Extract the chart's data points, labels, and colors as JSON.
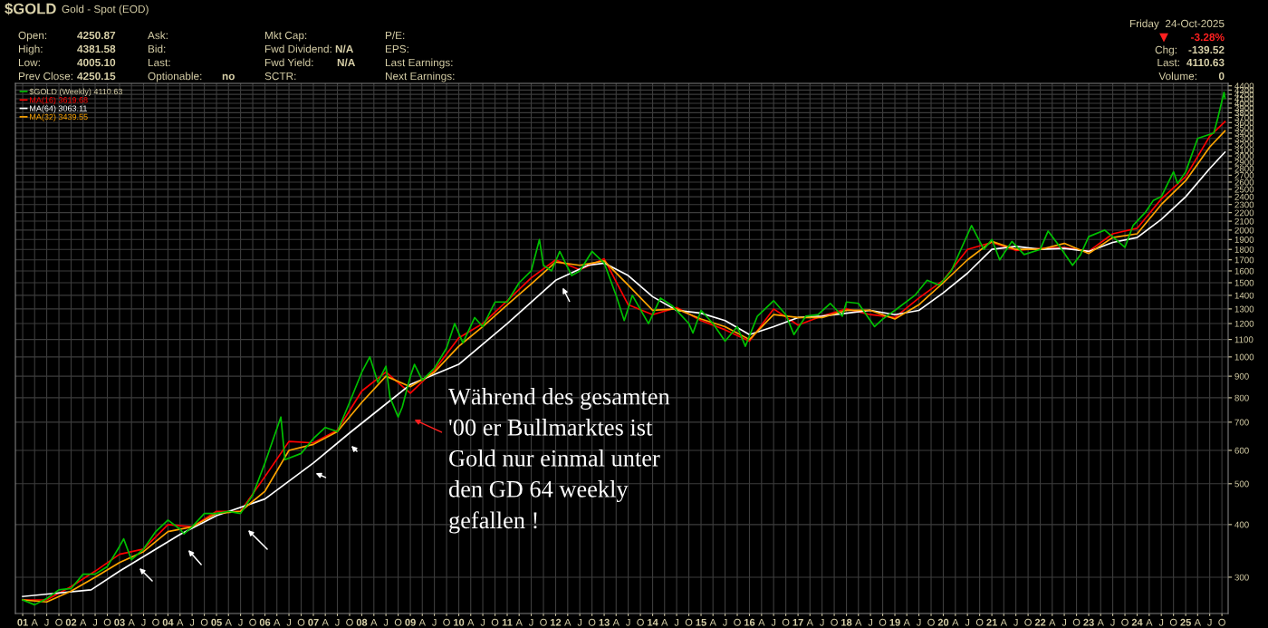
{
  "chart_data": {
    "type": "line",
    "title": "$GOLD",
    "subtitle": "Gold - Spot (EOD)",
    "log": true,
    "grid": true,
    "legend": "top left",
    "marker": "none",
    "line_style": "solid",
    "xlim": [
      "2000-11-07",
      "2025-11-17"
    ],
    "ylim": [
      246,
      4460
    ],
    "yticks": [
      300,
      400,
      500,
      600,
      700,
      800,
      900,
      1000,
      1100,
      1200,
      1300,
      1400,
      1500,
      1600,
      1700,
      1800,
      1900,
      2000,
      2100,
      2200,
      2300,
      2400,
      2500,
      2600,
      2700,
      2800,
      2900,
      3000,
      3100,
      3200,
      3300,
      3400,
      3500,
      3600,
      3700,
      3800,
      3900,
      4000,
      4100,
      4200,
      4300,
      4400
    ],
    "xticks": [
      {
        "value": "2001-01",
        "label": "01"
      },
      {
        "value": "2001-04",
        "label": "A"
      },
      {
        "value": "2001-07",
        "label": "J"
      },
      {
        "value": "2001-10",
        "label": "O"
      },
      {
        "value": "2002-01",
        "label": "02"
      },
      {
        "value": "2002-04",
        "label": "A"
      },
      {
        "value": "2002-07",
        "label": "J"
      },
      {
        "value": "2002-10",
        "label": "O"
      },
      {
        "value": "2003-01",
        "label": "03"
      },
      {
        "value": "2003-04",
        "label": "A"
      },
      {
        "value": "2003-07",
        "label": "J"
      },
      {
        "value": "2003-10",
        "label": "O"
      },
      {
        "value": "2004-01",
        "label": "04"
      },
      {
        "value": "2004-04",
        "label": "A"
      },
      {
        "value": "2004-07",
        "label": "J"
      },
      {
        "value": "2004-10",
        "label": "O"
      },
      {
        "value": "2005-01",
        "label": "05"
      },
      {
        "value": "2005-04",
        "label": "A"
      },
      {
        "value": "2005-07",
        "label": "J"
      },
      {
        "value": "2005-10",
        "label": "O"
      },
      {
        "value": "2006-01",
        "label": "06"
      },
      {
        "value": "2006-04",
        "label": "A"
      },
      {
        "value": "2006-07",
        "label": "J"
      },
      {
        "value": "2006-10",
        "label": "O"
      },
      {
        "value": "2007-01",
        "label": "07"
      },
      {
        "value": "2007-04",
        "label": "A"
      },
      {
        "value": "2007-07",
        "label": "J"
      },
      {
        "value": "2007-10",
        "label": "O"
      },
      {
        "value": "2008-01",
        "label": "08"
      },
      {
        "value": "2008-04",
        "label": "A"
      },
      {
        "value": "2008-07",
        "label": "J"
      },
      {
        "value": "2008-10",
        "label": "O"
      },
      {
        "value": "2009-01",
        "label": "09"
      },
      {
        "value": "2009-04",
        "label": "A"
      },
      {
        "value": "2009-07",
        "label": "J"
      },
      {
        "value": "2009-10",
        "label": "O"
      },
      {
        "value": "2010-01",
        "label": "10"
      },
      {
        "value": "2010-04",
        "label": "A"
      },
      {
        "value": "2010-07",
        "label": "J"
      },
      {
        "value": "2010-10",
        "label": "O"
      },
      {
        "value": "2011-01",
        "label": "11"
      },
      {
        "value": "2011-04",
        "label": "A"
      },
      {
        "value": "2011-07",
        "label": "J"
      },
      {
        "value": "2011-10",
        "label": "O"
      },
      {
        "value": "2012-01",
        "label": "12"
      },
      {
        "value": "2012-04",
        "label": "A"
      },
      {
        "value": "2012-07",
        "label": "J"
      },
      {
        "value": "2012-10",
        "label": "O"
      },
      {
        "value": "2013-01",
        "label": "13"
      },
      {
        "value": "2013-04",
        "label": "A"
      },
      {
        "value": "2013-07",
        "label": "J"
      },
      {
        "value": "2013-10",
        "label": "O"
      },
      {
        "value": "2014-01",
        "label": "14"
      },
      {
        "value": "2014-04",
        "label": "A"
      },
      {
        "value": "2014-07",
        "label": "J"
      },
      {
        "value": "2014-10",
        "label": "O"
      },
      {
        "value": "2015-01",
        "label": "15"
      },
      {
        "value": "2015-04",
        "label": "A"
      },
      {
        "value": "2015-07",
        "label": "J"
      },
      {
        "value": "2015-10",
        "label": "O"
      },
      {
        "value": "2016-01",
        "label": "16"
      },
      {
        "value": "2016-04",
        "label": "A"
      },
      {
        "value": "2016-07",
        "label": "J"
      },
      {
        "value": "2016-10",
        "label": "O"
      },
      {
        "value": "2017-01",
        "label": "17"
      },
      {
        "value": "2017-04",
        "label": "A"
      },
      {
        "value": "2017-07",
        "label": "J"
      },
      {
        "value": "2017-10",
        "label": "O"
      },
      {
        "value": "2018-01",
        "label": "18"
      },
      {
        "value": "2018-04",
        "label": "A"
      },
      {
        "value": "2018-07",
        "label": "J"
      },
      {
        "value": "2018-10",
        "label": "O"
      },
      {
        "value": "2019-01",
        "label": "19"
      },
      {
        "value": "2019-04",
        "label": "A"
      },
      {
        "value": "2019-07",
        "label": "J"
      },
      {
        "value": "2019-10",
        "label": "O"
      },
      {
        "value": "2020-01",
        "label": "20"
      },
      {
        "value": "2020-04",
        "label": "A"
      },
      {
        "value": "2020-07",
        "label": "J"
      },
      {
        "value": "2020-10",
        "label": "O"
      },
      {
        "value": "2021-01",
        "label": "21"
      },
      {
        "value": "2021-04",
        "label": "A"
      },
      {
        "value": "2021-07",
        "label": "J"
      },
      {
        "value": "2021-10",
        "label": "O"
      },
      {
        "value": "2022-01",
        "label": "22"
      },
      {
        "value": "2022-04",
        "label": "A"
      },
      {
        "value": "2022-07",
        "label": "J"
      },
      {
        "value": "2022-10",
        "label": "O"
      },
      {
        "value": "2023-01",
        "label": "23"
      },
      {
        "value": "2023-04",
        "label": "A"
      },
      {
        "value": "2023-07",
        "label": "J"
      },
      {
        "value": "2023-10",
        "label": "O"
      },
      {
        "value": "2024-01",
        "label": "24"
      },
      {
        "value": "2024-04",
        "label": "A"
      },
      {
        "value": "2024-07",
        "label": "J"
      },
      {
        "value": "2024-10",
        "label": "O"
      },
      {
        "value": "2025-01",
        "label": "25"
      },
      {
        "value": "2025-04",
        "label": "A"
      },
      {
        "value": "2025-07",
        "label": "J"
      },
      {
        "value": "2025-10",
        "label": "O"
      }
    ],
    "series": [
      {
        "name": "$GOLD (Weekly) 4110.63",
        "color": "#00c000",
        "x": [
          "2001-01",
          "2001-04",
          "2001-07",
          "2001-10",
          "2002-01",
          "2002-04",
          "2002-07",
          "2002-10",
          "2003-01",
          "2003-02",
          "2003-04",
          "2003-07",
          "2003-10",
          "2004-01",
          "2004-04",
          "2004-05",
          "2004-07",
          "2004-10",
          "2005-01",
          "2005-04",
          "2005-07",
          "2005-10",
          "2006-01",
          "2006-05",
          "2006-06",
          "2006-10",
          "2007-01",
          "2007-04",
          "2007-07",
          "2007-10",
          "2008-01",
          "2008-03",
          "2008-05",
          "2008-07",
          "2008-08",
          "2008-10",
          "2008-11",
          "2009-01",
          "2009-02",
          "2009-04",
          "2009-07",
          "2009-10",
          "2009-12",
          "2010-02",
          "2010-05",
          "2010-07",
          "2010-10",
          "2011-01",
          "2011-04",
          "2011-07",
          "2011-09",
          "2011-10",
          "2011-12",
          "2012-02",
          "2012-05",
          "2012-07",
          "2012-10",
          "2013-01",
          "2013-04",
          "2013-06",
          "2013-08",
          "2013-12",
          "2014-03",
          "2014-06",
          "2014-10",
          "2014-11",
          "2015-01",
          "2015-04",
          "2015-07",
          "2015-10",
          "2015-12",
          "2016-03",
          "2016-07",
          "2016-10",
          "2016-12",
          "2017-03",
          "2017-06",
          "2017-09",
          "2017-12",
          "2018-01",
          "2018-04",
          "2018-08",
          "2018-10",
          "2019-01",
          "2019-06",
          "2019-09",
          "2019-12",
          "2020-03",
          "2020-08",
          "2020-11",
          "2021-01",
          "2021-03",
          "2021-06",
          "2021-09",
          "2022-01",
          "2022-03",
          "2022-06",
          "2022-09",
          "2022-11",
          "2023-01",
          "2023-05",
          "2023-10",
          "2023-12",
          "2024-03",
          "2024-05",
          "2024-07",
          "2024-10",
          "2024-11",
          "2025-01",
          "2025-04",
          "2025-06",
          "2025-08",
          "2025-09",
          "2025-10-17",
          "2025-10-24"
        ],
        "values": [
          265,
          258,
          267,
          280,
          282,
          305,
          305,
          318,
          355,
          370,
          330,
          350,
          385,
          410,
          390,
          380,
          395,
          425,
          425,
          430,
          425,
          470,
          560,
          720,
          570,
          590,
          640,
          680,
          665,
          780,
          920,
          1000,
          870,
          950,
          800,
          720,
          760,
          900,
          960,
          880,
          940,
          1050,
          1200,
          1080,
          1240,
          1180,
          1350,
          1350,
          1500,
          1600,
          1900,
          1650,
          1600,
          1780,
          1560,
          1600,
          1780,
          1670,
          1400,
          1220,
          1400,
          1200,
          1380,
          1320,
          1200,
          1140,
          1290,
          1200,
          1090,
          1180,
          1060,
          1250,
          1360,
          1260,
          1130,
          1250,
          1260,
          1340,
          1250,
          1350,
          1340,
          1180,
          1230,
          1290,
          1400,
          1520,
          1480,
          1600,
          2050,
          1800,
          1900,
          1700,
          1880,
          1750,
          1800,
          1990,
          1820,
          1650,
          1750,
          1930,
          2000,
          1820,
          2050,
          2200,
          2350,
          2400,
          2750,
          2580,
          2750,
          3300,
          3350,
          3400,
          3700,
          4250,
          4110.63
        ]
      },
      {
        "name": "MA(16) 3619.68",
        "color": "#ff0000",
        "x": [
          "2001-01",
          "2001-07",
          "2002-01",
          "2002-07",
          "2003-01",
          "2003-07",
          "2004-01",
          "2004-07",
          "2005-01",
          "2005-07",
          "2006-01",
          "2006-07",
          "2007-01",
          "2007-07",
          "2008-01",
          "2008-07",
          "2009-01",
          "2009-07",
          "2010-01",
          "2010-07",
          "2011-01",
          "2011-07",
          "2012-01",
          "2012-07",
          "2013-01",
          "2013-07",
          "2014-01",
          "2014-07",
          "2015-01",
          "2015-07",
          "2016-01",
          "2016-07",
          "2017-01",
          "2017-07",
          "2018-01",
          "2018-07",
          "2019-01",
          "2019-07",
          "2020-01",
          "2020-07",
          "2021-01",
          "2021-07",
          "2022-01",
          "2022-07",
          "2023-01",
          "2023-07",
          "2024-01",
          "2024-07",
          "2025-01",
          "2025-07",
          "2025-10-24"
        ],
        "values": [
          265,
          265,
          285,
          310,
          340,
          350,
          400,
          395,
          430,
          430,
          520,
          630,
          625,
          670,
          830,
          920,
          820,
          930,
          1110,
          1200,
          1360,
          1540,
          1700,
          1610,
          1710,
          1330,
          1260,
          1310,
          1220,
          1160,
          1090,
          1300,
          1190,
          1250,
          1300,
          1260,
          1240,
          1380,
          1520,
          1800,
          1870,
          1790,
          1810,
          1820,
          1780,
          1960,
          2020,
          2370,
          2680,
          3340,
          3619.68
        ]
      },
      {
        "name": "MA(64) 3063.11",
        "color": "#ffffff",
        "x": [
          "2001-01",
          "2002-06",
          "2003-01",
          "2004-04",
          "2005-01",
          "2006-01",
          "2007-01",
          "2007-10",
          "2008-06",
          "2009-01",
          "2010-01",
          "2011-01",
          "2012-01",
          "2012-09",
          "2013-01",
          "2013-07",
          "2014-01",
          "2014-07",
          "2015-01",
          "2015-07",
          "2016-01",
          "2016-07",
          "2017-01",
          "2017-07",
          "2018-01",
          "2018-07",
          "2019-01",
          "2019-07",
          "2020-01",
          "2020-07",
          "2021-01",
          "2021-07",
          "2022-01",
          "2022-07",
          "2023-01",
          "2023-07",
          "2024-01",
          "2024-07",
          "2025-01",
          "2025-07",
          "2025-10-24"
        ],
        "values": [
          270,
          280,
          310,
          379,
          420,
          460,
          560,
          660,
          760,
          860,
          960,
          1200,
          1520,
          1650,
          1670,
          1560,
          1390,
          1290,
          1270,
          1220,
          1130,
          1180,
          1240,
          1250,
          1270,
          1290,
          1260,
          1290,
          1420,
          1580,
          1800,
          1830,
          1800,
          1810,
          1780,
          1870,
          1920,
          2120,
          2400,
          2800,
          3063.11
        ]
      },
      {
        "name": "MA(32) 3439.55",
        "color": "#ffa500",
        "x": [
          "2001-01",
          "2001-07",
          "2002-01",
          "2002-07",
          "2003-01",
          "2003-07",
          "2004-01",
          "2004-07",
          "2005-01",
          "2005-07",
          "2006-01",
          "2006-07",
          "2007-01",
          "2007-07",
          "2008-01",
          "2008-07",
          "2009-01",
          "2009-07",
          "2010-01",
          "2010-07",
          "2011-01",
          "2011-07",
          "2012-01",
          "2012-07",
          "2013-01",
          "2013-07",
          "2014-01",
          "2014-07",
          "2015-01",
          "2015-07",
          "2016-01",
          "2016-07",
          "2017-01",
          "2017-07",
          "2018-01",
          "2018-07",
          "2019-01",
          "2019-07",
          "2020-01",
          "2020-07",
          "2021-01",
          "2021-07",
          "2022-01",
          "2022-07",
          "2023-01",
          "2023-07",
          "2024-01",
          "2024-07",
          "2025-01",
          "2025-07",
          "2025-10-24"
        ],
        "values": [
          265,
          262,
          278,
          300,
          325,
          345,
          385,
          395,
          425,
          430,
          480,
          600,
          620,
          665,
          780,
          900,
          850,
          920,
          1060,
          1180,
          1330,
          1490,
          1680,
          1650,
          1690,
          1480,
          1290,
          1300,
          1230,
          1180,
          1100,
          1260,
          1240,
          1240,
          1290,
          1290,
          1230,
          1330,
          1500,
          1700,
          1880,
          1800,
          1800,
          1860,
          1760,
          1920,
          1960,
          2300,
          2620,
          3150,
          3439.55
        ]
      }
    ],
    "annotations": [
      "Open:",
      "4250.87",
      "High:",
      "4381.58",
      "Low:",
      "4005.10",
      "Prev Close:",
      "4250.15",
      "Ask:",
      "Bid:",
      "Last:",
      "Optionable:",
      "no",
      "Mkt Cap:",
      "Fwd Dividend:",
      "N/A",
      "Fwd Yield:",
      "N/A",
      "SCTR:",
      "P/E:",
      "EPS:",
      "Last Earnings:",
      "Next Earnings:",
      "Friday  24-Oct-2025",
      "▼",
      "-3.28%",
      "Chg:",
      "-139.52",
      "Last:",
      "4110.63",
      "Volume:",
      "0",
      "Während des gesamten\n'00 er Bullmarktes ist\nGold nur einmal unter\nden GD 64 weekly\ngefallen !"
    ]
  }
}
